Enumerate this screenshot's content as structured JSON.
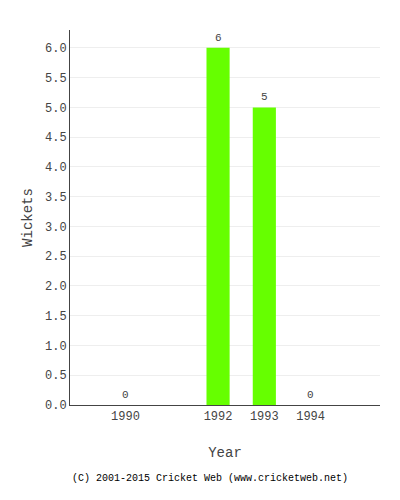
{
  "chart_data": {
    "type": "bar",
    "x": [
      1990,
      1992,
      1993,
      1994
    ],
    "values": [
      0,
      6,
      5,
      0
    ],
    "color": "#66ff00",
    "xlabel": "Year",
    "ylabel": "Wickets",
    "xlim": [
      1988.8,
      1995.5
    ],
    "xticks": [
      1990,
      1992,
      1993,
      1994
    ],
    "ylim": [
      0,
      6.3
    ],
    "yticks": [
      {
        "value": 0,
        "label": "0.0"
      },
      0.5,
      {
        "value": 1,
        "label": "1.0"
      },
      1.5,
      {
        "value": 2,
        "label": "2.0"
      },
      2.5,
      {
        "value": 3,
        "label": "3.0"
      },
      3.5,
      {
        "value": 4,
        "label": "4.0"
      },
      4.5,
      {
        "value": 5,
        "label": "5.0"
      },
      5.5,
      {
        "value": 6,
        "label": "6.0"
      }
    ],
    "grid": true,
    "data_labels": true,
    "annotations": [
      "(C) 2001-2015 Cricket Web (www.cricketweb.net)"
    ]
  }
}
